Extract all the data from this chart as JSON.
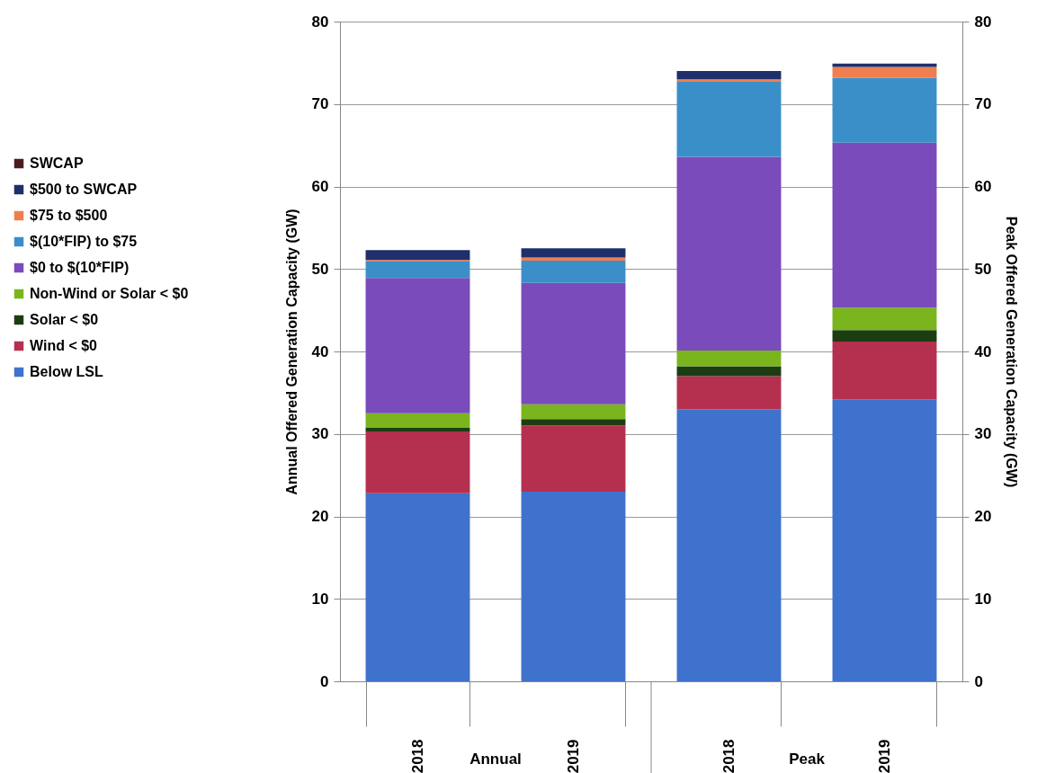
{
  "chart_data": {
    "type": "bar",
    "stacked": true,
    "categories": [
      "2018",
      "2019",
      "2018",
      "2019"
    ],
    "annotations": [
      "Annual",
      "Peak"
    ],
    "ylabel": "Annual Offered Generation Capacity (GW)",
    "y2label": "Peak Offered Generation Capacity (GW)",
    "ylim": [
      0,
      80
    ],
    "yticks": [
      0,
      10,
      20,
      30,
      40,
      50,
      60,
      70,
      80
    ],
    "y2lim": [
      0,
      80
    ],
    "y2ticks": [
      0,
      10,
      20,
      30,
      40,
      50,
      60,
      70,
      80
    ],
    "grid": "y",
    "legend": "left",
    "series": [
      {
        "name": "Below LSL",
        "color": "#3f72cc",
        "values": [
          22.8,
          23.0,
          33.0,
          34.2
        ]
      },
      {
        "name": "Wind < $0",
        "color": "#b5304f",
        "values": [
          7.5,
          8.0,
          4.0,
          7.0
        ]
      },
      {
        "name": "Solar < $0",
        "color": "#1c3d12",
        "values": [
          0.5,
          0.8,
          1.2,
          1.4
        ]
      },
      {
        "name": "Non-Wind or Solar < $0",
        "color": "#7ab51d",
        "values": [
          1.7,
          1.8,
          1.9,
          2.7
        ]
      },
      {
        "name": "$0 to $(10*FIP)",
        "color": "#7a4bbb",
        "values": [
          16.4,
          14.7,
          23.5,
          20.0
        ]
      },
      {
        "name": "$(10*FIP) to $75",
        "color": "#3b8fc9",
        "values": [
          2.0,
          2.7,
          9.1,
          7.9
        ]
      },
      {
        "name": "$75 to $500",
        "color": "#f07f4f",
        "values": [
          0.2,
          0.4,
          0.3,
          1.3
        ]
      },
      {
        "name": "$500 to SWCAP",
        "color": "#1f2f6b",
        "values": [
          1.2,
          1.1,
          1.0,
          0.4
        ]
      },
      {
        "name": "SWCAP",
        "color": "#4a1c20",
        "values": [
          0,
          0,
          0,
          0
        ]
      }
    ]
  }
}
